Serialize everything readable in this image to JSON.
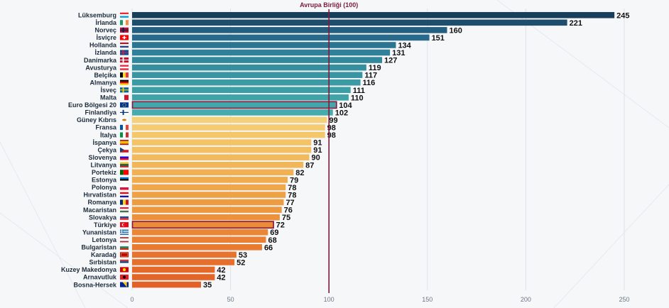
{
  "chart_data": {
    "type": "bar",
    "orientation": "horizontal",
    "reference_line": {
      "value": 100,
      "label": "Avrupa Birliği (100)"
    },
    "xlim": [
      0,
      250
    ],
    "xticks": [
      0,
      50,
      100,
      150,
      200,
      250
    ],
    "highlighted": [
      "Euro Bölgesi 20",
      "Türkiye"
    ],
    "bar_color_groups": {
      "blue_dark": "#1f4e6d",
      "blue_mid": "#2b7f9e",
      "teal": "#3aa3a8",
      "yellow": "#f3c66b",
      "orange_light": "#f4a74d",
      "orange": "#ee8a3a",
      "orange_dark": "#e8702c",
      "highlight_border": "#8b1538",
      "reference_line": "#7a1c3a"
    },
    "categories": [
      "Lüksemburg",
      "İrlanda",
      "Norveç",
      "İsviçre",
      "Hollanda",
      "İzlanda",
      "Danimarka",
      "Avusturya",
      "Belçika",
      "Almanya",
      "İsveç",
      "Malta",
      "Euro Bölgesi 20",
      "Finlandiya",
      "Güney Kıbrıs",
      "Fransa",
      "İtalya",
      "İspanya",
      "Çekya",
      "Slovenya",
      "Litvanya",
      "Portekiz",
      "Estonya",
      "Polonya",
      "Hırvatistan",
      "Romanya",
      "Macaristan",
      "Slovakya",
      "Türkiye",
      "Yunanistan",
      "Letonya",
      "Bulgaristan",
      "Karadağ",
      "Sırbistan",
      "Kuzey Makedonya",
      "Arnavutluk",
      "Bosna-Hersek"
    ],
    "values": [
      245,
      221,
      160,
      151,
      134,
      131,
      127,
      119,
      117,
      116,
      111,
      110,
      104,
      102,
      99,
      98,
      98,
      91,
      91,
      90,
      87,
      82,
      79,
      78,
      78,
      77,
      76,
      75,
      72,
      69,
      68,
      66,
      53,
      52,
      42,
      42,
      35
    ],
    "flags": [
      "flag-lu",
      "flag-ie",
      "flag-no",
      "flag-ch",
      "flag-nl",
      "flag-is",
      "flag-dk",
      "flag-at",
      "flag-be",
      "flag-de",
      "flag-se",
      "flag-mt",
      "flag-eu",
      "flag-fi",
      "flag-cy",
      "flag-fr",
      "flag-it",
      "flag-es",
      "flag-cz",
      "flag-si",
      "flag-lt",
      "flag-pt",
      "flag-ee",
      "flag-pl",
      "flag-hr",
      "flag-ro",
      "flag-hu",
      "flag-sk",
      "flag-tr",
      "flag-gr",
      "flag-lv",
      "flag-bg",
      "flag-me",
      "flag-rs",
      "flag-mk",
      "flag-al",
      "flag-ba"
    ]
  }
}
